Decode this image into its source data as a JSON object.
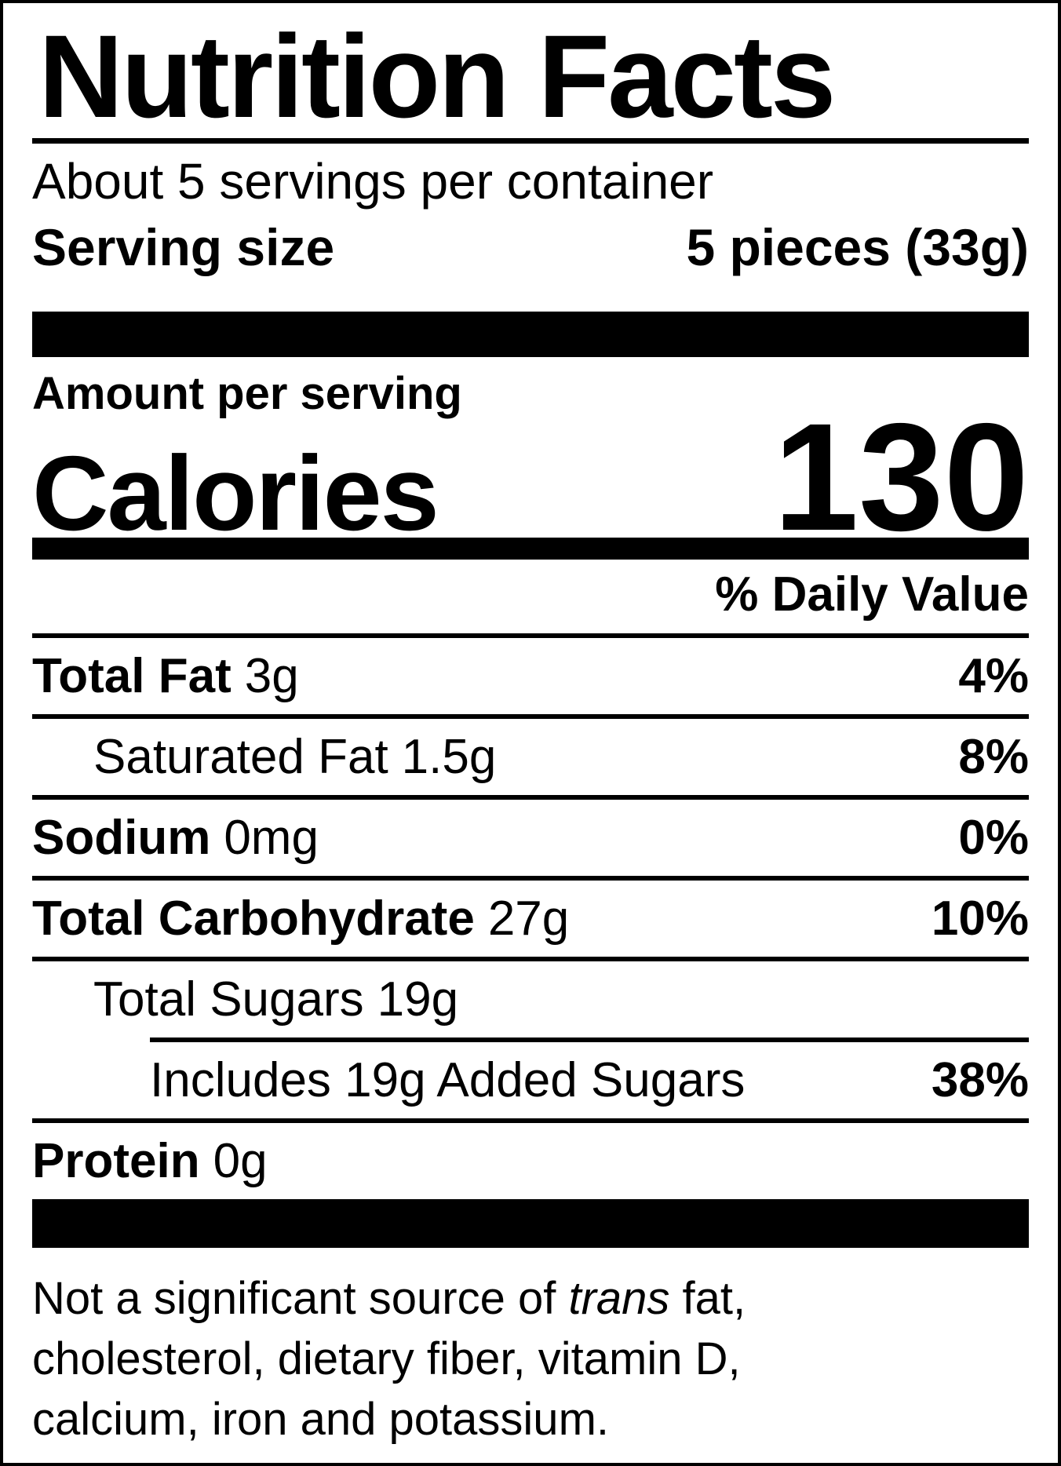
{
  "title": "Nutrition Facts",
  "servings_per_container": "About 5 servings per container",
  "serving_size": {
    "label": "Serving size",
    "value": "5 pieces (33g)"
  },
  "amount_per_serving": "Amount per serving",
  "calories": {
    "label": "Calories",
    "value": "130"
  },
  "daily_value_header": "% Daily Value",
  "nutrients": [
    {
      "name": "Total Fat",
      "amount": "3g",
      "dv": "4%"
    },
    {
      "name": "Saturated Fat",
      "amount": "1.5g",
      "dv": "8%"
    },
    {
      "name": "Sodium",
      "amount": "0mg",
      "dv": "0%"
    },
    {
      "name": "Total Carbohydrate",
      "amount": "27g",
      "dv": "10%"
    },
    {
      "name": "Total Sugars",
      "amount": "19g",
      "dv": ""
    },
    {
      "name": "Includes 19g Added Sugars",
      "amount": "",
      "dv": "38%"
    },
    {
      "name": "Protein",
      "amount": "0g",
      "dv": ""
    }
  ],
  "footnote": {
    "part1": "Not a significant source of ",
    "italic": "trans",
    "part2": " fat, cholesterol, dietary fiber, vitamin D, calcium, iron and potassium."
  },
  "colors": {
    "foreground": "#000000",
    "background": "#ffffff"
  }
}
